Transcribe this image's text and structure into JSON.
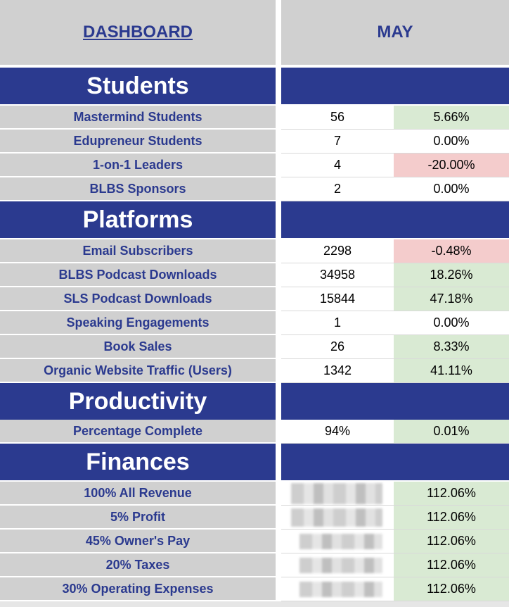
{
  "header": {
    "title": "DASHBOARD",
    "month": "MAY"
  },
  "sections": {
    "students": {
      "title": "Students",
      "rows": [
        {
          "label": "Mastermind Students",
          "value": "56",
          "change": "5.66%",
          "status": "positive"
        },
        {
          "label": "Edupreneur Students",
          "value": "7",
          "change": "0.00%",
          "status": "neutral"
        },
        {
          "label": "1-on-1 Leaders",
          "value": "4",
          "change": "-20.00%",
          "status": "negative"
        },
        {
          "label": "BLBS Sponsors",
          "value": "2",
          "change": "0.00%",
          "status": "neutral"
        }
      ]
    },
    "platforms": {
      "title": "Platforms",
      "rows": [
        {
          "label": "Email Subscribers",
          "value": "2298",
          "change": "-0.48%",
          "status": "negative"
        },
        {
          "label": "BLBS Podcast Downloads",
          "value": "34958",
          "change": "18.26%",
          "status": "positive"
        },
        {
          "label": "SLS Podcast Downloads",
          "value": "15844",
          "change": "47.18%",
          "status": "positive"
        },
        {
          "label": "Speaking Engagements",
          "value": "1",
          "change": "0.00%",
          "status": "neutral"
        },
        {
          "label": "Book Sales",
          "value": "26",
          "change": "8.33%",
          "status": "positive"
        },
        {
          "label": "Organic Website Traffic (Users)",
          "value": "1342",
          "change": "41.11%",
          "status": "positive"
        }
      ]
    },
    "productivity": {
      "title": "Productivity",
      "rows": [
        {
          "label": "Percentage Complete",
          "value": "94%",
          "change": "0.01%",
          "status": "positive"
        }
      ]
    },
    "finances": {
      "title": "Finances",
      "rows": [
        {
          "label": "100% All Revenue",
          "change": "112.06%",
          "status": "positive"
        },
        {
          "label": "5% Profit",
          "change": "112.06%",
          "status": "positive"
        },
        {
          "label": "45% Owner's Pay",
          "change": "112.06%",
          "status": "positive"
        },
        {
          "label": "20% Taxes",
          "change": "112.06%",
          "status": "positive"
        },
        {
          "label": "30% Operating Expenses",
          "change": "112.06%",
          "status": "positive"
        }
      ]
    }
  },
  "colors": {
    "navy": "#2b3a8f",
    "label_gray": "#d0d0d0",
    "positive": "#d9ead3",
    "negative": "#f4cccc"
  }
}
